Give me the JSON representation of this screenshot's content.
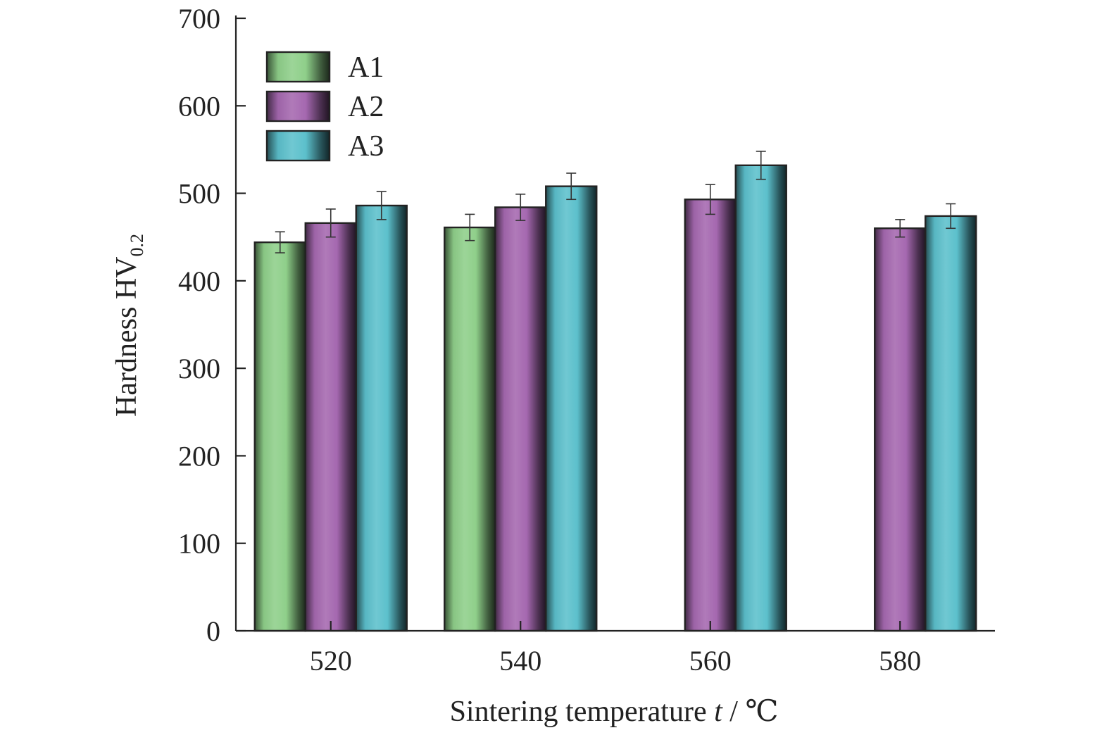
{
  "chart_data": {
    "type": "bar",
    "title": "",
    "xlabel": "Sintering temperature",
    "xlabel_var": "t",
    "xlabel_sep": " / ",
    "xlabel_unit": "℃",
    "ylabel": "Hardness HV",
    "ylabel_sub": "0.2",
    "categories": [
      "520",
      "540",
      "560",
      "580"
    ],
    "ylim": [
      0,
      700
    ],
    "yticks": [
      0,
      100,
      200,
      300,
      400,
      500,
      600,
      700
    ],
    "grid": false,
    "legend_position": "top-left",
    "series": [
      {
        "name": "A1",
        "color": "#8fcf8a",
        "values": [
          444,
          461,
          null,
          null
        ],
        "errors": [
          12,
          15,
          null,
          null
        ]
      },
      {
        "name": "A2",
        "color": "#a568b0",
        "values": [
          466,
          484,
          493,
          460
        ],
        "errors": [
          16,
          15,
          17,
          10
        ]
      },
      {
        "name": "A3",
        "color": "#5cc0cc",
        "values": [
          486,
          508,
          532,
          474
        ],
        "errors": [
          16,
          15,
          16,
          14
        ]
      }
    ]
  }
}
